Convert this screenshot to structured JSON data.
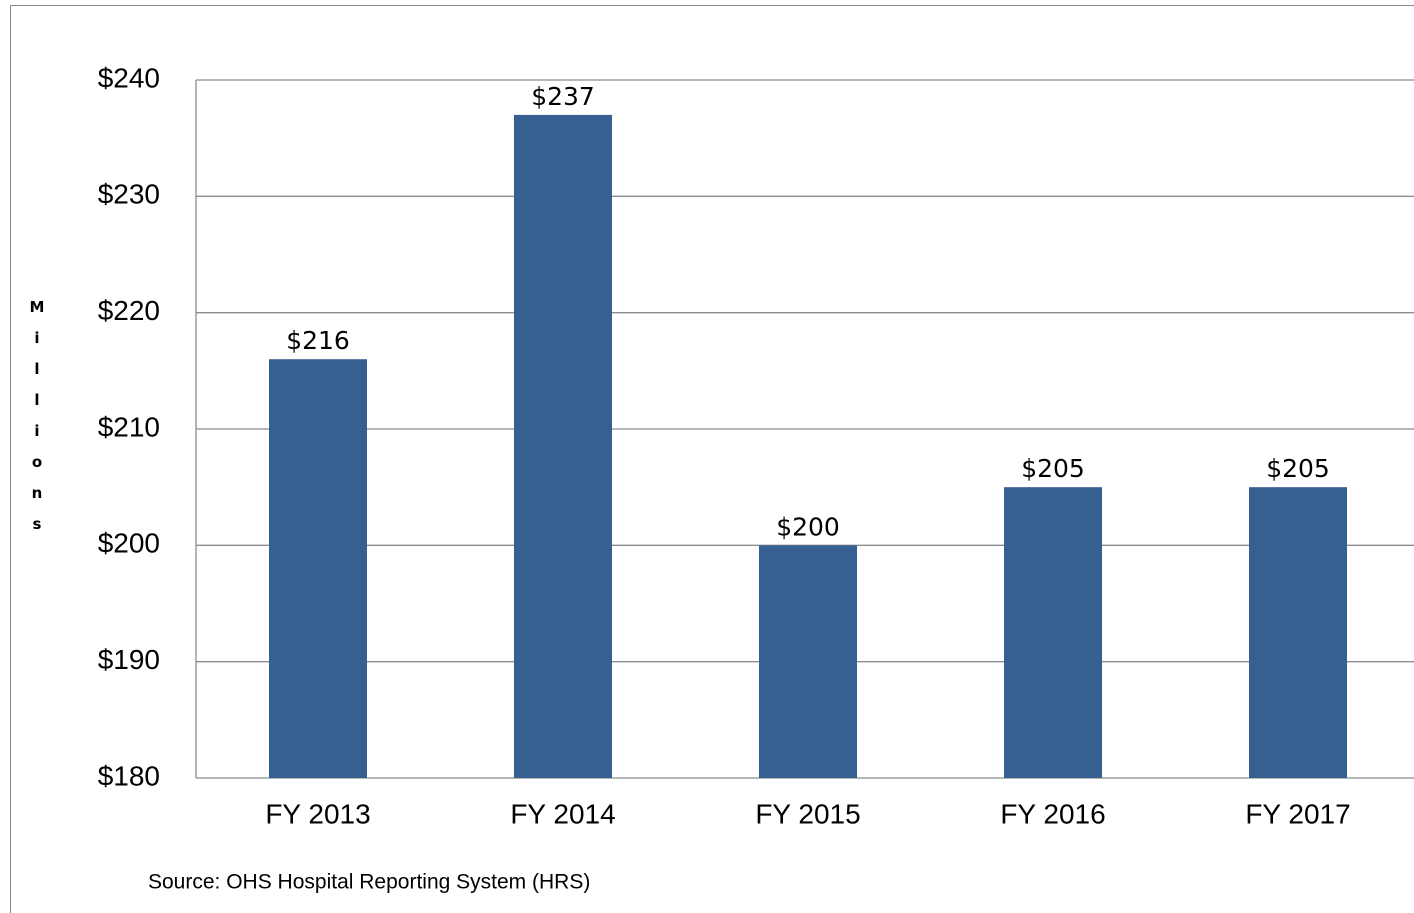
{
  "chart_data": {
    "type": "bar",
    "y_label": "Millions",
    "categories": [
      "FY 2013",
      "FY 2014",
      "FY 2015",
      "FY 2016",
      "FY 2017"
    ],
    "values": [
      216,
      237,
      200,
      205,
      205
    ],
    "value_labels": [
      "$216",
      "$237",
      "$200",
      "$205",
      "$205"
    ],
    "color": "#376092",
    "ylim": [
      180,
      240
    ],
    "yticks": [
      {
        "value": 180,
        "label": "$180"
      },
      {
        "value": 190,
        "label": "$190"
      },
      {
        "value": 200,
        "label": "$200"
      },
      {
        "value": 210,
        "label": "$210"
      },
      {
        "value": 220,
        "label": "$220"
      },
      {
        "value": 230,
        "label": "$230"
      },
      {
        "value": 240,
        "label": "$240"
      }
    ],
    "grid": true,
    "source": "Source: OHS Hospital Reporting System (HRS)"
  }
}
